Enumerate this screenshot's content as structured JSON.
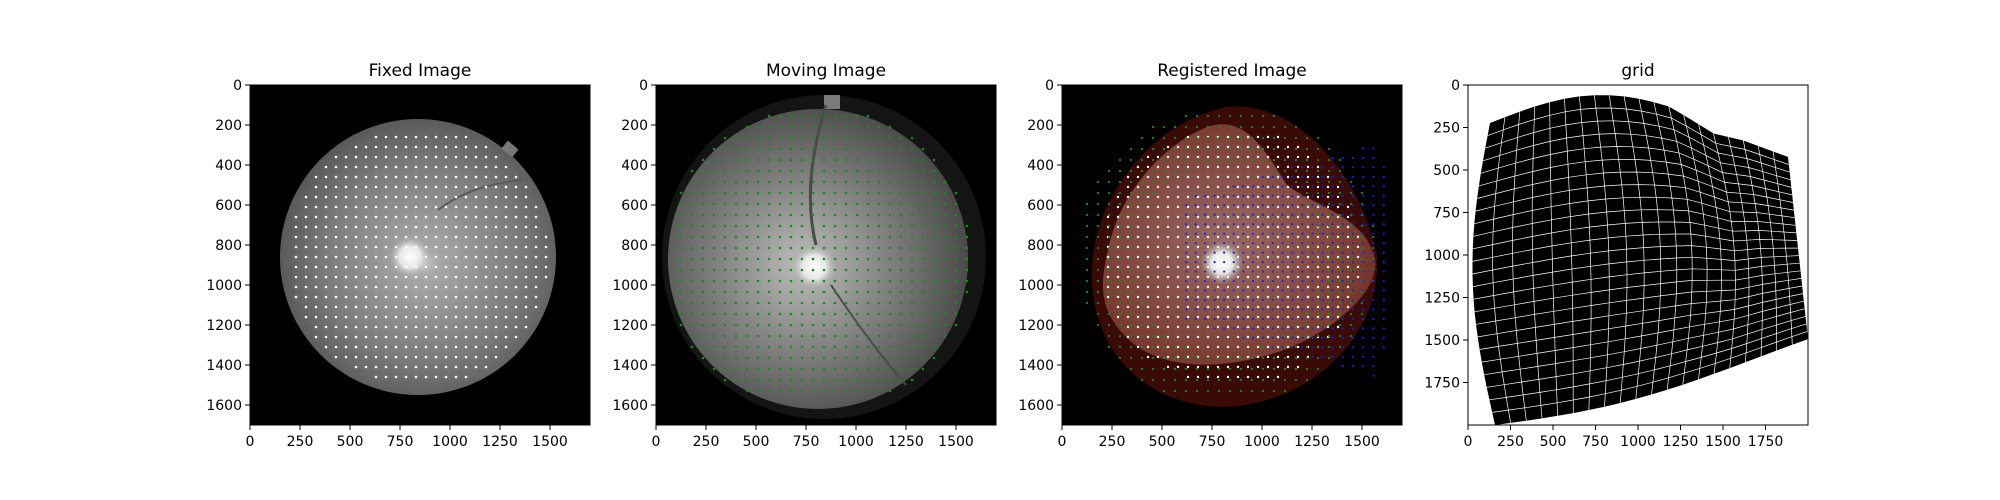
{
  "figure": {
    "panels": [
      {
        "key": "fixed",
        "title": "Fixed Image",
        "x_ticks": [
          "0",
          "250",
          "500",
          "750",
          "1000",
          "1250",
          "1500"
        ],
        "y_ticks": [
          "0",
          "200",
          "400",
          "600",
          "800",
          "1000",
          "1200",
          "1400",
          "1600"
        ]
      },
      {
        "key": "moving",
        "title": "Moving Image",
        "x_ticks": [
          "0",
          "250",
          "500",
          "750",
          "1000",
          "1250",
          "1500"
        ],
        "y_ticks": [
          "0",
          "200",
          "400",
          "600",
          "800",
          "1000",
          "1200",
          "1400",
          "1600"
        ]
      },
      {
        "key": "registered",
        "title": "Registered Image",
        "x_ticks": [
          "0",
          "250",
          "500",
          "750",
          "1000",
          "1250",
          "1500"
        ],
        "y_ticks": [
          "0",
          "200",
          "400",
          "600",
          "800",
          "1000",
          "1200",
          "1400",
          "1600"
        ]
      },
      {
        "key": "grid",
        "title": "grid",
        "x_ticks": [
          "0",
          "250",
          "500",
          "750",
          "1000",
          "1250",
          "1500",
          "1750"
        ],
        "y_ticks": [
          "0",
          "250",
          "500",
          "750",
          "1000",
          "1250",
          "1500",
          "1750"
        ]
      }
    ],
    "colors": {
      "fixed_points": "#ffffff",
      "moving_points": "#1a8c1a",
      "warped_points": "#2020d0",
      "overlay_red": "#c03020",
      "grid_lines": "#ffffff",
      "background": "#000000"
    }
  }
}
